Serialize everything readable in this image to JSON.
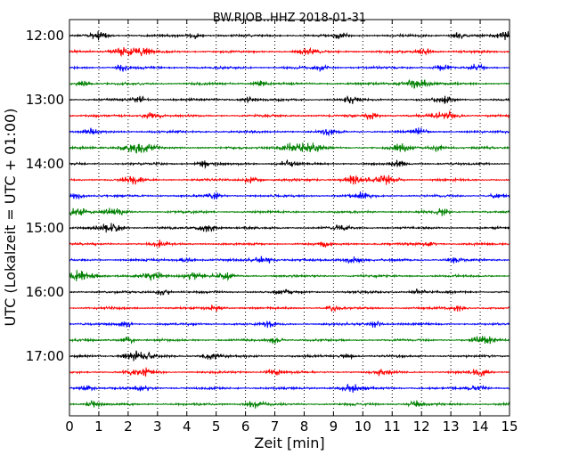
{
  "chart_data": {
    "type": "line",
    "title": "BW.RJOB..HHZ 2018-01-31",
    "xlabel": "Zeit  [min]",
    "ylabel": "UTC (Lokalzeit = UTC + 01:00)",
    "xlim": [
      0,
      15
    ],
    "x_ticks": [
      "0",
      "1",
      "2",
      "3",
      "4",
      "5",
      "6",
      "7",
      "8",
      "9",
      "10",
      "11",
      "12",
      "13",
      "14",
      "15"
    ],
    "y_tick_labels": [
      "12:00",
      "13:00",
      "14:00",
      "15:00",
      "16:00",
      "17:00"
    ],
    "grid": "vertical dotted",
    "colors": [
      "#000000",
      "#ff0000",
      "#0000ff",
      "#008000"
    ],
    "series": [
      {
        "start": "12:00",
        "color": "#000000",
        "bursts": [
          [
            1.0,
            0.5
          ],
          [
            4.3,
            0.4
          ],
          [
            9.2,
            0.4
          ],
          [
            13.3,
            0.4
          ],
          [
            14.9,
            0.6
          ]
        ]
      },
      {
        "start": "12:15",
        "color": "#ff0000",
        "bursts": [
          [
            1.9,
            0.7
          ],
          [
            2.6,
            0.5
          ],
          [
            8.1,
            0.5
          ],
          [
            12.1,
            0.5
          ]
        ]
      },
      {
        "start": "12:30",
        "color": "#0000ff",
        "bursts": [
          [
            1.8,
            0.4
          ],
          [
            8.6,
            0.4
          ],
          [
            12.7,
            0.4
          ],
          [
            13.9,
            0.4
          ]
        ]
      },
      {
        "start": "12:45",
        "color": "#008000",
        "bursts": [
          [
            0.5,
            0.4
          ],
          [
            6.5,
            0.4
          ],
          [
            11.8,
            0.8
          ]
        ]
      },
      {
        "start": "13:00",
        "color": "#000000",
        "bursts": [
          [
            2.4,
            0.4
          ],
          [
            6.1,
            0.4
          ],
          [
            9.6,
            0.4
          ],
          [
            12.8,
            0.5
          ]
        ]
      },
      {
        "start": "13:15",
        "color": "#ff0000",
        "bursts": [
          [
            2.8,
            0.5
          ],
          [
            10.3,
            0.4
          ],
          [
            12.8,
            0.7
          ]
        ]
      },
      {
        "start": "13:30",
        "color": "#0000ff",
        "bursts": [
          [
            0.7,
            0.4
          ],
          [
            8.8,
            0.4
          ],
          [
            11.9,
            0.4
          ]
        ]
      },
      {
        "start": "13:45",
        "color": "#008000",
        "bursts": [
          [
            2.3,
            0.9
          ],
          [
            7.7,
            0.9
          ],
          [
            8.4,
            0.5
          ],
          [
            11.3,
            0.5
          ],
          [
            12.5,
            0.5
          ]
        ]
      },
      {
        "start": "14:00",
        "color": "#000000",
        "bursts": [
          [
            4.6,
            0.4
          ],
          [
            7.4,
            0.5
          ],
          [
            11.2,
            0.4
          ]
        ]
      },
      {
        "start": "14:15",
        "color": "#ff0000",
        "bursts": [
          [
            2.2,
            0.5
          ],
          [
            6.2,
            0.5
          ],
          [
            9.7,
            0.7
          ],
          [
            10.8,
            0.7
          ]
        ]
      },
      {
        "start": "14:30",
        "color": "#0000ff",
        "bursts": [
          [
            0.2,
            0.5
          ],
          [
            4.9,
            0.4
          ],
          [
            9.9,
            0.5
          ],
          [
            14.6,
            0.4
          ]
        ]
      },
      {
        "start": "14:45",
        "color": "#008000",
        "bursts": [
          [
            0.2,
            0.7
          ],
          [
            1.5,
            0.6
          ],
          [
            12.7,
            0.4
          ]
        ]
      },
      {
        "start": "15:00",
        "color": "#000000",
        "bursts": [
          [
            1.4,
            0.7
          ],
          [
            4.7,
            0.6
          ],
          [
            9.3,
            0.4
          ]
        ]
      },
      {
        "start": "15:15",
        "color": "#ff0000",
        "bursts": [
          [
            3.1,
            0.4
          ],
          [
            8.7,
            0.4
          ],
          [
            12.2,
            0.4
          ]
        ]
      },
      {
        "start": "15:30",
        "color": "#0000ff",
        "bursts": [
          [
            4.0,
            0.4
          ],
          [
            6.6,
            0.6
          ],
          [
            9.7,
            0.6
          ],
          [
            13.1,
            0.4
          ]
        ]
      },
      {
        "start": "15:45",
        "color": "#008000",
        "bursts": [
          [
            0.3,
            1.0
          ],
          [
            2.9,
            0.6
          ],
          [
            4.2,
            0.6
          ],
          [
            5.3,
            0.5
          ]
        ]
      },
      {
        "start": "16:00",
        "color": "#000000",
        "bursts": [
          [
            3.2,
            0.4
          ],
          [
            7.3,
            0.4
          ],
          [
            11.9,
            0.4
          ]
        ]
      },
      {
        "start": "16:15",
        "color": "#ff0000",
        "bursts": [
          [
            5.0,
            0.4
          ],
          [
            9.0,
            0.4
          ],
          [
            13.3,
            0.4
          ]
        ]
      },
      {
        "start": "16:30",
        "color": "#0000ff",
        "bursts": [
          [
            1.9,
            0.4
          ],
          [
            6.8,
            0.4
          ],
          [
            10.4,
            0.4
          ]
        ]
      },
      {
        "start": "16:45",
        "color": "#008000",
        "bursts": [
          [
            2.0,
            0.4
          ],
          [
            7.0,
            0.4
          ],
          [
            14.1,
            0.6
          ]
        ]
      },
      {
        "start": "17:00",
        "color": "#000000",
        "bursts": [
          [
            2.3,
            0.8
          ],
          [
            4.8,
            0.5
          ],
          [
            9.5,
            0.4
          ]
        ]
      },
      {
        "start": "17:15",
        "color": "#ff0000",
        "bursts": [
          [
            2.4,
            0.7
          ],
          [
            7.0,
            0.5
          ],
          [
            10.7,
            0.5
          ],
          [
            14.0,
            0.5
          ]
        ]
      },
      {
        "start": "17:30",
        "color": "#0000ff",
        "bursts": [
          [
            0.6,
            0.4
          ],
          [
            2.5,
            0.4
          ],
          [
            9.6,
            0.6
          ],
          [
            13.9,
            0.5
          ]
        ]
      },
      {
        "start": "17:45",
        "color": "#008000",
        "bursts": [
          [
            0.8,
            0.4
          ],
          [
            6.3,
            0.5
          ],
          [
            11.8,
            0.4
          ]
        ]
      }
    ]
  }
}
